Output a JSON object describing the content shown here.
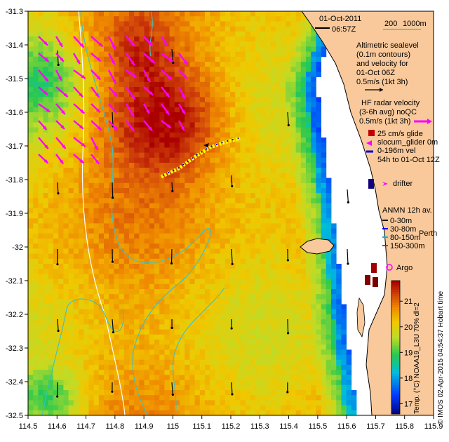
{
  "map": {
    "date": "01-Oct-2011",
    "time": "06:57Z",
    "scale_label": "200",
    "depth_label": "1000m",
    "x_ticks": [
      "114.5",
      "114.6",
      "114.7",
      "114.8",
      "114.9",
      "115",
      "115.1",
      "115.2",
      "115.3",
      "115.4",
      "115.5",
      "115.6",
      "115.7",
      "115.8",
      "115.9"
    ],
    "y_ticks": [
      "-31.3",
      "-31.4",
      "-31.5",
      "-31.6",
      "-31.7",
      "-31.8",
      "-31.9",
      "-32",
      "-32.1",
      "-32.2",
      "-32.3",
      "-32.4",
      "-32.5"
    ],
    "x_range": [
      114.5,
      115.9
    ],
    "y_range": [
      -32.5,
      -31.3
    ],
    "altimetric_lines": [
      "Altimetric sealevel",
      "(0.1m contours)",
      "and velocity for",
      "01-Oct 06Z",
      "0.5m/s (1kt 3h)"
    ],
    "hf_lines": [
      "HF radar velocity",
      "(3-6h avg) noQC",
      "0.5m/s (1kt 3h)"
    ],
    "glider_lines": [
      "25 cm/s glide",
      "slocum_glider 0m",
      "0-196m vel",
      "54h to 01-Oct 12Z"
    ],
    "drifter_label": "drifter",
    "anmn_title": "ANMN 12h av.",
    "anmn_depths": [
      "0-30m",
      "30-80m",
      "80-150m",
      "150-300m"
    ],
    "perth_label": "Perth",
    "argo_label": "Argo",
    "colorbar_ticks": [
      "21",
      "20",
      "19",
      "18",
      "17"
    ],
    "colorbar_range": [
      16.6,
      21.8
    ],
    "colorbar_label": "Temp. (°C) NOAA19_L3U 70% dl=2",
    "credit": "© IMOS 02-Apr-2015 04:54:37 Hobart time",
    "colors": {
      "land": "#f9c99b",
      "coast": "#000000",
      "glider": "#ffff00",
      "hf_arrow": "#ff00ff",
      "bathy": "#40c0c0"
    }
  }
}
